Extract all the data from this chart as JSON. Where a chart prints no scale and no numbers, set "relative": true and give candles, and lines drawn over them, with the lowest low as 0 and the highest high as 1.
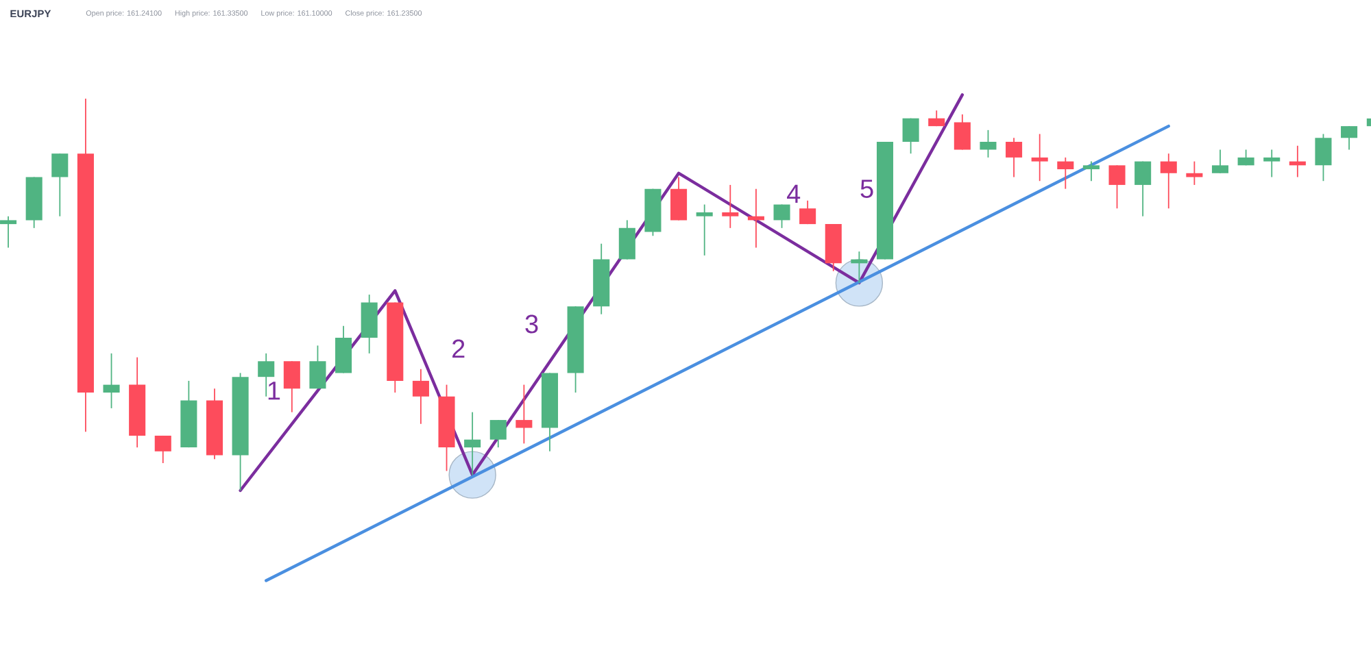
{
  "chart_data": {
    "type": "candlestick",
    "title": "EURJPY",
    "relative": true,
    "annotations": [
      "Open price: 161.24100",
      "High price: 161.33500",
      "Low price: 161.10000",
      "Close price: 161.23500",
      "1",
      "2",
      "3",
      "4",
      "5"
    ],
    "categories": [
      null,
      null,
      null,
      null,
      null,
      null,
      null,
      null,
      null,
      null,
      null,
      null,
      null,
      null,
      null,
      null,
      null,
      null,
      null,
      null,
      null,
      null,
      null,
      null,
      null,
      null,
      null,
      null,
      null,
      null,
      null,
      null,
      null,
      null,
      null,
      null,
      null,
      null,
      null,
      null,
      null,
      null,
      null,
      null,
      null,
      null,
      null,
      null,
      null,
      null,
      null,
      null,
      null,
      null
    ],
    "ohlc": [
      [
        0.68,
        0.7,
        0.62,
        0.69
      ],
      [
        0.69,
        0.8,
        0.67,
        0.8
      ],
      [
        0.8,
        0.86,
        0.7,
        0.86
      ],
      [
        0.86,
        1.0,
        0.15,
        0.25
      ],
      [
        0.25,
        0.35,
        0.21,
        0.27
      ],
      [
        0.27,
        0.34,
        0.11,
        0.14
      ],
      [
        0.14,
        0.14,
        0.07,
        0.1
      ],
      [
        0.11,
        0.28,
        0.11,
        0.23
      ],
      [
        0.23,
        0.26,
        0.08,
        0.09
      ],
      [
        0.09,
        0.3,
        0.0,
        0.29
      ],
      [
        0.29,
        0.35,
        0.24,
        0.33
      ],
      [
        0.33,
        0.33,
        0.2,
        0.26
      ],
      [
        0.26,
        0.37,
        0.26,
        0.33
      ],
      [
        0.3,
        0.42,
        0.3,
        0.39
      ],
      [
        0.39,
        0.5,
        0.35,
        0.48
      ],
      [
        0.48,
        0.48,
        0.25,
        0.28
      ],
      [
        0.28,
        0.31,
        0.17,
        0.24
      ],
      [
        0.24,
        0.27,
        0.05,
        0.11
      ],
      [
        0.11,
        0.2,
        0.04,
        0.13
      ],
      [
        0.13,
        0.18,
        0.11,
        0.18
      ],
      [
        0.18,
        0.27,
        0.12,
        0.16
      ],
      [
        0.16,
        0.3,
        0.1,
        0.3
      ],
      [
        0.3,
        0.47,
        0.25,
        0.47
      ],
      [
        0.47,
        0.63,
        0.45,
        0.59
      ],
      [
        0.59,
        0.69,
        0.59,
        0.67
      ],
      [
        0.66,
        0.77,
        0.65,
        0.77
      ],
      [
        0.77,
        0.8,
        0.69,
        0.69
      ],
      [
        0.7,
        0.73,
        0.6,
        0.71
      ],
      [
        0.71,
        0.78,
        0.67,
        0.7
      ],
      [
        0.7,
        0.77,
        0.62,
        0.69
      ],
      [
        0.69,
        0.73,
        0.67,
        0.73
      ],
      [
        0.72,
        0.74,
        0.68,
        0.68
      ],
      [
        0.68,
        0.68,
        0.56,
        0.58
      ],
      [
        0.58,
        0.61,
        0.53,
        0.59
      ],
      [
        0.59,
        0.89,
        0.59,
        0.89
      ],
      [
        0.89,
        0.95,
        0.86,
        0.95
      ],
      [
        0.95,
        0.97,
        0.93,
        0.93
      ],
      [
        0.94,
        0.96,
        0.87,
        0.87
      ],
      [
        0.87,
        0.92,
        0.85,
        0.89
      ],
      [
        0.89,
        0.9,
        0.8,
        0.85
      ],
      [
        0.85,
        0.91,
        0.79,
        0.84
      ],
      [
        0.84,
        0.85,
        0.77,
        0.82
      ],
      [
        0.82,
        0.84,
        0.79,
        0.83
      ],
      [
        0.83,
        0.83,
        0.72,
        0.78
      ],
      [
        0.78,
        0.84,
        0.7,
        0.84
      ],
      [
        0.84,
        0.86,
        0.72,
        0.81
      ],
      [
        0.81,
        0.84,
        0.78,
        0.8
      ],
      [
        0.81,
        0.87,
        0.81,
        0.83
      ],
      [
        0.83,
        0.87,
        0.83,
        0.85
      ],
      [
        0.84,
        0.87,
        0.8,
        0.85
      ],
      [
        0.84,
        0.88,
        0.8,
        0.83
      ],
      [
        0.83,
        0.91,
        0.79,
        0.9
      ],
      [
        0.9,
        0.93,
        0.87,
        0.93
      ],
      [
        0.93,
        0.95,
        0.93,
        0.95
      ]
    ],
    "colors": [
      "#50b482",
      "#50b482",
      "#50b482",
      "#fd4c5c",
      "#50b482",
      "#fd4c5c",
      "#fd4c5c",
      "#50b482",
      "#fd4c5c",
      "#50b482",
      "#50b482",
      "#fd4c5c",
      "#50b482",
      "#50b482",
      "#50b482",
      "#fd4c5c",
      "#fd4c5c",
      "#fd4c5c",
      "#50b482",
      "#50b482",
      "#fd4c5c",
      "#50b482",
      "#50b482",
      "#50b482",
      "#50b482",
      "#50b482",
      "#fd4c5c",
      "#50b482",
      "#fd4c5c",
      "#fd4c5c",
      "#50b482",
      "#fd4c5c",
      "#fd4c5c",
      "#50b482",
      "#50b482",
      "#50b482",
      "#fd4c5c",
      "#fd4c5c",
      "#50b482",
      "#fd4c5c",
      "#fd4c5c",
      "#fd4c5c",
      "#50b482",
      "#fd4c5c",
      "#50b482",
      "#fd4c5c",
      "#fd4c5c",
      "#50b482",
      "#50b482",
      "#50b482",
      "#fd4c5c",
      "#50b482",
      "#50b482",
      "#50b482"
    ],
    "series": [
      {
        "type": "line",
        "color": "#7b2d9e",
        "values": [
          null,
          null,
          null,
          null,
          null,
          null,
          null,
          null,
          null,
          0.0,
          null,
          null,
          null,
          null,
          null,
          0.51,
          null,
          null,
          0.04,
          null,
          null,
          null,
          null,
          null,
          null,
          null,
          0.81,
          null,
          null,
          null,
          null,
          null,
          null,
          0.53,
          null,
          null,
          null,
          1.01,
          null,
          null,
          null,
          null,
          null,
          null,
          null,
          null,
          null,
          null,
          null,
          null,
          null,
          null,
          null,
          null
        ]
      },
      {
        "type": "line",
        "color": "#4a8fe0",
        "values": [
          null,
          null,
          null,
          null,
          null,
          null,
          null,
          null,
          null,
          null,
          -0.23,
          null,
          null,
          null,
          null,
          null,
          null,
          null,
          null,
          null,
          null,
          null,
          null,
          null,
          null,
          null,
          null,
          null,
          null,
          null,
          null,
          null,
          null,
          null,
          null,
          null,
          null,
          null,
          null,
          null,
          null,
          null,
          null,
          null,
          null,
          0.93,
          null,
          null,
          null,
          null,
          null,
          null,
          null,
          null
        ]
      },
      {
        "type": "scatter",
        "color": "#d0e3f7",
        "marker": "circle",
        "values": [
          null,
          null,
          null,
          null,
          null,
          null,
          null,
          null,
          null,
          null,
          null,
          null,
          null,
          null,
          null,
          null,
          null,
          null,
          0.04,
          null,
          null,
          null,
          null,
          null,
          null,
          null,
          null,
          null,
          null,
          null,
          null,
          null,
          null,
          0.53,
          null,
          null,
          null,
          null,
          null,
          null,
          null,
          null,
          null,
          null,
          null,
          null,
          null,
          null,
          null,
          null,
          null,
          null,
          null,
          null
        ]
      }
    ]
  }
}
